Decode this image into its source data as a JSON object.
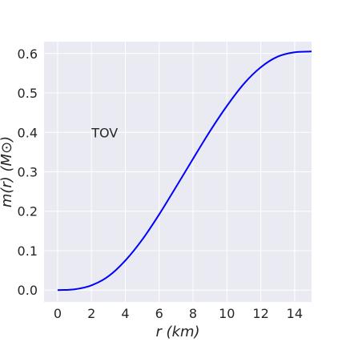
{
  "chart_data": {
    "type": "line",
    "title": "",
    "xlabel": "r (km)",
    "ylabel": "m(r) (M⊙)",
    "xlim": [
      -0.8,
      15
    ],
    "ylim": [
      -0.03,
      0.63
    ],
    "xticks": [
      0,
      2,
      4,
      6,
      8,
      10,
      12,
      14
    ],
    "yticks": [
      0.0,
      0.1,
      0.2,
      0.3,
      0.4,
      0.5,
      0.6
    ],
    "ytick_labels": [
      "0.0",
      "0.1",
      "0.2",
      "0.3",
      "0.4",
      "0.5",
      "0.6"
    ],
    "grid": true,
    "background": "#eaeaf2",
    "annotation": {
      "text": "TOV",
      "x": 2.0,
      "y": 0.4
    },
    "series": [
      {
        "color": "#0000ff",
        "x": [
          0,
          1,
          2,
          3,
          4,
          5,
          6,
          7,
          8,
          9,
          10,
          11,
          12,
          13,
          14,
          15
        ],
        "y": [
          0.0,
          0.002,
          0.012,
          0.035,
          0.075,
          0.128,
          0.192,
          0.262,
          0.333,
          0.403,
          0.467,
          0.523,
          0.565,
          0.592,
          0.603,
          0.605
        ]
      }
    ]
  }
}
